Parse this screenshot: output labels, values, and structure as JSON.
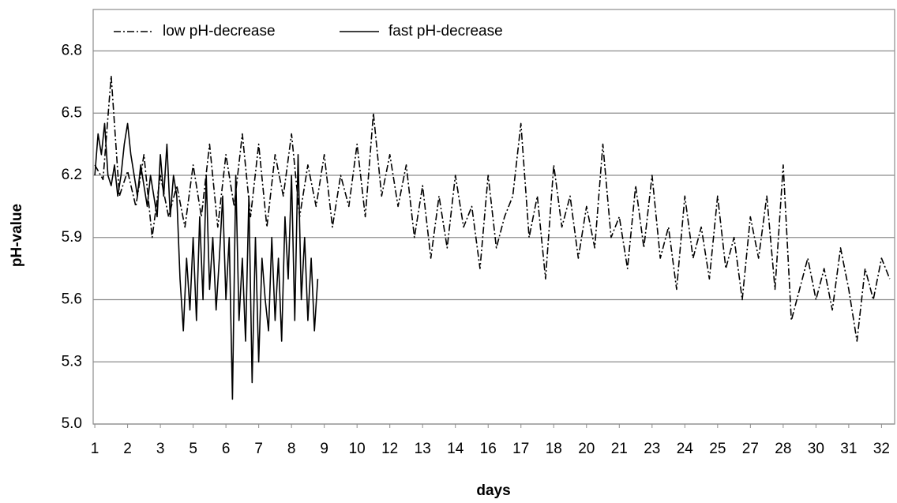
{
  "chart_data": {
    "type": "line",
    "x_label": "days",
    "y_label": "pH-value",
    "xlim": [
      -0.05,
      24.4
    ],
    "xticks": [
      {
        "value": 0,
        "label": "1"
      },
      {
        "value": 1,
        "label": "2"
      },
      {
        "value": 2,
        "label": "3"
      },
      {
        "value": 3,
        "label": "5"
      },
      {
        "value": 4,
        "label": "6"
      },
      {
        "value": 5,
        "label": "7"
      },
      {
        "value": 6,
        "label": "8"
      },
      {
        "value": 7,
        "label": "9"
      },
      {
        "value": 8,
        "label": "10"
      },
      {
        "value": 9,
        "label": "12"
      },
      {
        "value": 10,
        "label": "13"
      },
      {
        "value": 11,
        "label": "14"
      },
      {
        "value": 12,
        "label": "16"
      },
      {
        "value": 13,
        "label": "17"
      },
      {
        "value": 14,
        "label": "18"
      },
      {
        "value": 15,
        "label": "20"
      },
      {
        "value": 16,
        "label": "21"
      },
      {
        "value": 17,
        "label": "23"
      },
      {
        "value": 18,
        "label": "24"
      },
      {
        "value": 19,
        "label": "25"
      },
      {
        "value": 20,
        "label": "27"
      },
      {
        "value": 21,
        "label": "28"
      },
      {
        "value": 22,
        "label": "30"
      },
      {
        "value": 23,
        "label": "31"
      },
      {
        "value": 24,
        "label": "32"
      }
    ],
    "ylim": [
      5.0,
      7.0
    ],
    "yticks": [
      {
        "value": 5,
        "label": "5.0"
      },
      5.3,
      5.6,
      5.9,
      6.2,
      6.5,
      6.8
    ],
    "grid": true,
    "legend": "upper left",
    "series": [
      {
        "name": "low pH-decrease",
        "color": "#000000",
        "linestyle": "dashdot",
        "x": [
          0,
          0.25,
          0.5,
          0.75,
          1,
          1.25,
          1.5,
          1.75,
          2,
          2.25,
          2.5,
          2.75,
          3,
          3.25,
          3.5,
          3.75,
          4,
          4.25,
          4.5,
          4.75,
          5,
          5.25,
          5.5,
          5.75,
          6,
          6.25,
          6.5,
          6.75,
          7,
          7.25,
          7.5,
          7.75,
          8,
          8.25,
          8.5,
          8.75,
          9,
          9.25,
          9.5,
          9.75,
          10,
          10.25,
          10.5,
          10.75,
          11,
          11.25,
          11.5,
          11.75,
          12,
          12.25,
          12.5,
          12.75,
          13,
          13.25,
          13.5,
          13.75,
          14,
          14.25,
          14.5,
          14.75,
          15,
          15.25,
          15.5,
          15.75,
          16,
          16.25,
          16.5,
          16.75,
          17,
          17.25,
          17.5,
          17.75,
          18,
          18.25,
          18.5,
          18.75,
          19,
          19.25,
          19.5,
          19.75,
          20,
          20.25,
          20.5,
          20.75,
          21,
          21.25,
          21.5,
          21.75,
          22,
          22.25,
          22.5,
          22.75,
          23,
          23.25,
          23.5,
          23.75,
          24,
          24.25
        ],
        "values": [
          6.25,
          6.18,
          6.68,
          6.1,
          6.22,
          6.05,
          6.3,
          5.9,
          6.2,
          6.0,
          6.15,
          5.95,
          6.25,
          6.0,
          6.35,
          5.95,
          6.3,
          6.05,
          6.4,
          6.0,
          6.35,
          5.95,
          6.3,
          6.1,
          6.4,
          6.0,
          6.25,
          6.05,
          6.3,
          5.95,
          6.2,
          6.05,
          6.35,
          6.0,
          6.5,
          6.1,
          6.3,
          6.05,
          6.25,
          5.9,
          6.15,
          5.8,
          6.1,
          5.85,
          6.2,
          5.95,
          6.05,
          5.75,
          6.2,
          5.85,
          6.0,
          6.1,
          6.45,
          5.9,
          6.1,
          5.7,
          6.25,
          5.95,
          6.1,
          5.8,
          6.05,
          5.85,
          6.35,
          5.9,
          6.0,
          5.75,
          6.15,
          5.85,
          6.2,
          5.8,
          5.95,
          5.65,
          6.1,
          5.8,
          5.95,
          5.7,
          6.1,
          5.75,
          5.9,
          5.6,
          6.0,
          5.8,
          6.1,
          5.65,
          6.25,
          5.5,
          5.65,
          5.8,
          5.6,
          5.75,
          5.55,
          5.85,
          5.65,
          5.4,
          5.75,
          5.6,
          5.8,
          5.7
        ]
      },
      {
        "name": "fast pH-decrease",
        "color": "#000000",
        "linestyle": "solid",
        "x": [
          0,
          0.1,
          0.2,
          0.3,
          0.4,
          0.5,
          0.6,
          0.7,
          0.8,
          0.9,
          1,
          1.1,
          1.2,
          1.3,
          1.4,
          1.5,
          1.6,
          1.7,
          1.8,
          1.9,
          2,
          2.1,
          2.2,
          2.3,
          2.4,
          2.5,
          2.6,
          2.7,
          2.8,
          2.9,
          3,
          3.1,
          3.2,
          3.3,
          3.4,
          3.5,
          3.6,
          3.7,
          3.8,
          3.9,
          4,
          4.1,
          4.2,
          4.3,
          4.4,
          4.5,
          4.6,
          4.7,
          4.8,
          4.9,
          5,
          5.1,
          5.2,
          5.3,
          5.4,
          5.5,
          5.6,
          5.7,
          5.8,
          5.9,
          6,
          6.1,
          6.2,
          6.3,
          6.4,
          6.5,
          6.6,
          6.7,
          6.8
        ],
        "values": [
          6.2,
          6.4,
          6.3,
          6.45,
          6.2,
          6.15,
          6.25,
          6.1,
          6.2,
          6.35,
          6.45,
          6.3,
          6.2,
          6.1,
          6.25,
          6.15,
          6.05,
          6.2,
          6.1,
          6.0,
          6.3,
          6.1,
          6.35,
          6.0,
          6.2,
          6.1,
          5.7,
          5.45,
          5.8,
          5.55,
          5.9,
          5.5,
          6.0,
          5.6,
          6.2,
          5.65,
          5.9,
          5.55,
          5.8,
          6.1,
          5.6,
          5.9,
          5.12,
          6.2,
          5.5,
          5.8,
          5.4,
          6.1,
          5.2,
          5.9,
          5.3,
          5.8,
          5.6,
          5.45,
          5.9,
          5.5,
          5.8,
          5.4,
          6.0,
          5.7,
          6.2,
          5.5,
          6.3,
          5.6,
          5.9,
          5.5,
          5.8,
          5.45,
          5.7
        ]
      }
    ]
  }
}
